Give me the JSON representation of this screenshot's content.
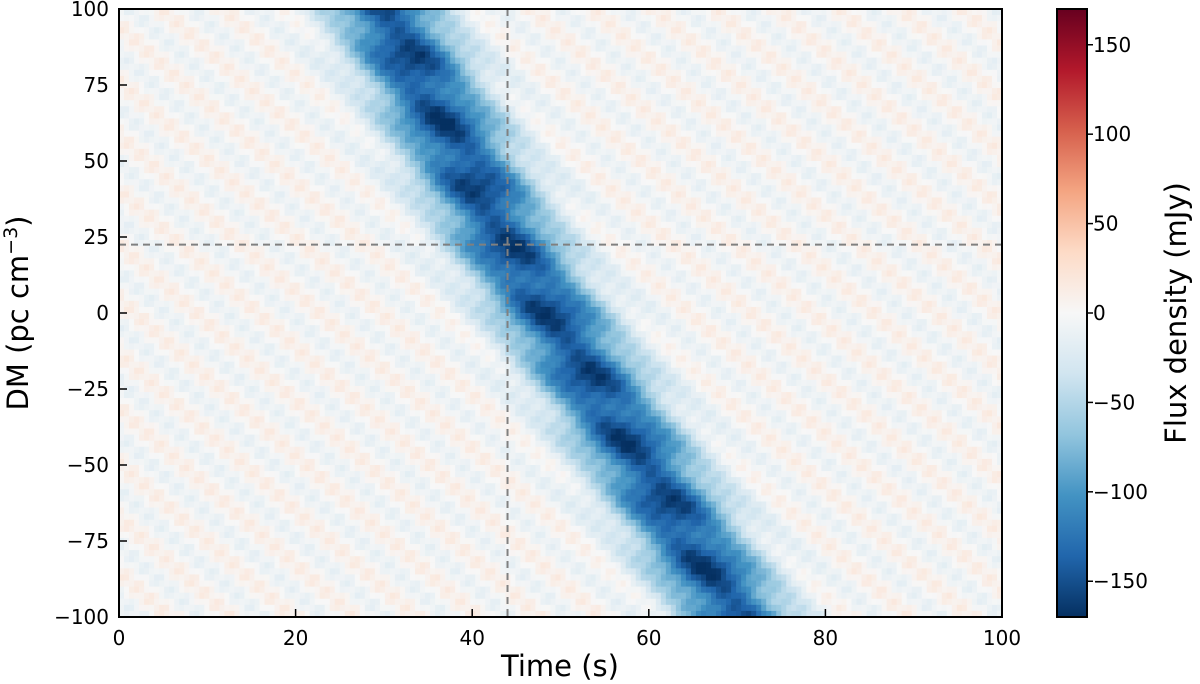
{
  "chart_data": {
    "type": "heatmap",
    "title": "",
    "xlabel": "Time (s)",
    "ylabel_main": "DM (pc cm",
    "ylabel_sup": "−3",
    "ylabel_close": ")",
    "xlim": [
      0,
      100
    ],
    "ylim": [
      -100,
      100
    ],
    "x_ticks": [
      0,
      20,
      40,
      60,
      80,
      100
    ],
    "x_tick_labels": [
      "0",
      "20",
      "40",
      "60",
      "80",
      "100"
    ],
    "y_ticks": [
      -100,
      -75,
      -50,
      -25,
      0,
      25,
      50,
      75,
      100
    ],
    "y_tick_labels": [
      "−100",
      "−75",
      "−50",
      "−25",
      "0",
      "25",
      "50",
      "75",
      "100"
    ],
    "grid": false,
    "crosshair": {
      "x": 44,
      "y": 22.5,
      "style": "dashed",
      "color": "#808080"
    },
    "sweep": {
      "description_points": [
        {
          "dm": 100,
          "time": 30
        },
        {
          "dm": 22.5,
          "time": 44
        },
        {
          "dm": -100,
          "time": 70
        }
      ],
      "peak_flux": -165,
      "width_s": 4.5
    },
    "colorbar": {
      "label": "Flux density (mJy)",
      "colormap": "RdBu_r",
      "vmin": -170,
      "vmax": 170,
      "ticks": [
        -150,
        -100,
        -50,
        0,
        50,
        100,
        150
      ],
      "tick_labels": [
        "−150",
        "−100",
        "−50",
        "0",
        "50",
        "100",
        "150"
      ]
    }
  }
}
